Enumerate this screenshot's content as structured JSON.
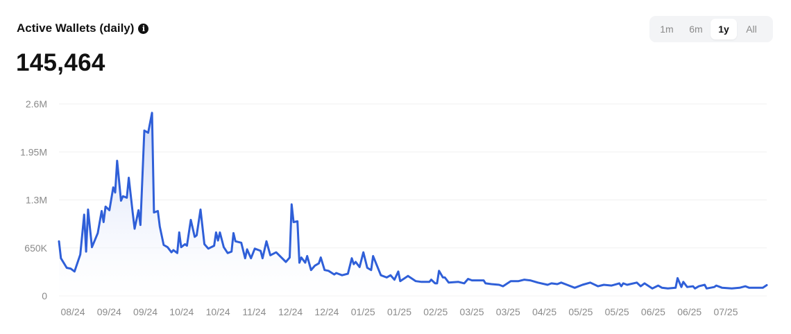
{
  "header": {
    "title": "Active Wallets (daily)",
    "info_icon": "info-icon",
    "current_value": "145,464"
  },
  "range_selector": {
    "options": [
      "1m",
      "6m",
      "1y",
      "All"
    ],
    "selected": "1y"
  },
  "colors": {
    "line": "#2f5fd8",
    "fill_top": "#c7d3f6",
    "grid": "#f0f0f0",
    "tick_text": "#8a8a8a"
  },
  "chart_data": {
    "type": "area",
    "title": "Active Wallets (daily)",
    "ylim": [
      0,
      2600000
    ],
    "yticks": [
      0,
      650000,
      1300000,
      1950000,
      2600000
    ],
    "ytick_labels": [
      "0",
      "650K",
      "1.3M",
      "1.95M",
      "2.6M"
    ],
    "xtick_labels": [
      "08/24",
      "09/24",
      "09/24",
      "10/24",
      "10/24",
      "11/24",
      "12/24",
      "12/24",
      "01/25",
      "01/25",
      "02/25",
      "03/25",
      "03/25",
      "04/25",
      "05/25",
      "05/25",
      "06/25",
      "06/25",
      "07/25"
    ],
    "grid": true,
    "points": [
      [
        "2024-07-29",
        740000
      ],
      [
        "2024-07-30",
        510000
      ],
      [
        "2024-08-02",
        380000
      ],
      [
        "2024-08-04",
        370000
      ],
      [
        "2024-08-06",
        330000
      ],
      [
        "2024-08-09",
        560000
      ],
      [
        "2024-08-11",
        1100000
      ],
      [
        "2024-08-12",
        600000
      ],
      [
        "2024-08-13",
        1170000
      ],
      [
        "2024-08-15",
        660000
      ],
      [
        "2024-08-18",
        850000
      ],
      [
        "2024-08-20",
        1150000
      ],
      [
        "2024-08-21",
        1000000
      ],
      [
        "2024-08-22",
        1210000
      ],
      [
        "2024-08-24",
        1160000
      ],
      [
        "2024-08-26",
        1470000
      ],
      [
        "2024-08-27",
        1400000
      ],
      [
        "2024-08-28",
        1830000
      ],
      [
        "2024-08-30",
        1290000
      ],
      [
        "2024-08-31",
        1350000
      ],
      [
        "2024-09-02",
        1330000
      ],
      [
        "2024-09-03",
        1600000
      ],
      [
        "2024-09-05",
        1130000
      ],
      [
        "2024-09-06",
        910000
      ],
      [
        "2024-09-08",
        1160000
      ],
      [
        "2024-09-09",
        960000
      ],
      [
        "2024-09-11",
        2240000
      ],
      [
        "2024-09-13",
        2210000
      ],
      [
        "2024-09-15",
        2480000
      ],
      [
        "2024-09-16",
        1130000
      ],
      [
        "2024-09-18",
        1150000
      ],
      [
        "2024-09-19",
        940000
      ],
      [
        "2024-09-21",
        690000
      ],
      [
        "2024-09-23",
        660000
      ],
      [
        "2024-09-25",
        590000
      ],
      [
        "2024-09-26",
        620000
      ],
      [
        "2024-09-28",
        580000
      ],
      [
        "2024-09-29",
        860000
      ],
      [
        "2024-09-30",
        660000
      ],
      [
        "2024-10-02",
        700000
      ],
      [
        "2024-10-03",
        680000
      ],
      [
        "2024-10-05",
        1030000
      ],
      [
        "2024-10-07",
        800000
      ],
      [
        "2024-10-08",
        820000
      ],
      [
        "2024-10-10",
        1170000
      ],
      [
        "2024-10-12",
        700000
      ],
      [
        "2024-10-14",
        640000
      ],
      [
        "2024-10-17",
        680000
      ],
      [
        "2024-10-18",
        860000
      ],
      [
        "2024-10-19",
        750000
      ],
      [
        "2024-10-20",
        860000
      ],
      [
        "2024-10-22",
        660000
      ],
      [
        "2024-10-24",
        580000
      ],
      [
        "2024-10-26",
        600000
      ],
      [
        "2024-10-27",
        850000
      ],
      [
        "2024-10-28",
        740000
      ],
      [
        "2024-10-31",
        720000
      ],
      [
        "2024-11-02",
        510000
      ],
      [
        "2024-11-03",
        630000
      ],
      [
        "2024-11-05",
        510000
      ],
      [
        "2024-11-07",
        640000
      ],
      [
        "2024-11-10",
        610000
      ],
      [
        "2024-11-11",
        510000
      ],
      [
        "2024-11-13",
        740000
      ],
      [
        "2024-11-15",
        550000
      ],
      [
        "2024-11-18",
        590000
      ],
      [
        "2024-11-23",
        460000
      ],
      [
        "2024-11-25",
        520000
      ],
      [
        "2024-11-26",
        1240000
      ],
      [
        "2024-11-27",
        1000000
      ],
      [
        "2024-11-29",
        1010000
      ],
      [
        "2024-11-30",
        450000
      ],
      [
        "2024-12-01",
        520000
      ],
      [
        "2024-12-03",
        450000
      ],
      [
        "2024-12-04",
        540000
      ],
      [
        "2024-12-06",
        350000
      ],
      [
        "2024-12-08",
        410000
      ],
      [
        "2024-12-10",
        440000
      ],
      [
        "2024-12-11",
        520000
      ],
      [
        "2024-12-13",
        350000
      ],
      [
        "2024-12-15",
        340000
      ],
      [
        "2024-12-18",
        290000
      ],
      [
        "2024-12-19",
        310000
      ],
      [
        "2024-12-22",
        280000
      ],
      [
        "2024-12-25",
        300000
      ],
      [
        "2024-12-27",
        510000
      ],
      [
        "2024-12-28",
        430000
      ],
      [
        "2024-12-29",
        460000
      ],
      [
        "2024-12-31",
        390000
      ],
      [
        "2025-01-02",
        590000
      ],
      [
        "2025-01-04",
        380000
      ],
      [
        "2025-01-06",
        350000
      ],
      [
        "2025-01-07",
        540000
      ],
      [
        "2025-01-11",
        280000
      ],
      [
        "2025-01-14",
        250000
      ],
      [
        "2025-01-16",
        280000
      ],
      [
        "2025-01-18",
        220000
      ],
      [
        "2025-01-20",
        330000
      ],
      [
        "2025-01-21",
        200000
      ],
      [
        "2025-01-25",
        270000
      ],
      [
        "2025-01-29",
        200000
      ],
      [
        "2025-02-01",
        190000
      ],
      [
        "2025-02-05",
        190000
      ],
      [
        "2025-02-06",
        220000
      ],
      [
        "2025-02-08",
        170000
      ],
      [
        "2025-02-09",
        170000
      ],
      [
        "2025-02-10",
        340000
      ],
      [
        "2025-02-12",
        250000
      ],
      [
        "2025-02-13",
        250000
      ],
      [
        "2025-02-15",
        180000
      ],
      [
        "2025-02-20",
        190000
      ],
      [
        "2025-02-23",
        170000
      ],
      [
        "2025-02-25",
        230000
      ],
      [
        "2025-02-27",
        210000
      ],
      [
        "2025-03-05",
        210000
      ],
      [
        "2025-03-06",
        170000
      ],
      [
        "2025-03-09",
        160000
      ],
      [
        "2025-03-13",
        150000
      ],
      [
        "2025-03-15",
        130000
      ],
      [
        "2025-03-19",
        200000
      ],
      [
        "2025-03-23",
        200000
      ],
      [
        "2025-03-26",
        220000
      ],
      [
        "2025-03-29",
        210000
      ],
      [
        "2025-04-02",
        180000
      ],
      [
        "2025-04-07",
        150000
      ],
      [
        "2025-04-09",
        170000
      ],
      [
        "2025-04-12",
        160000
      ],
      [
        "2025-04-14",
        180000
      ],
      [
        "2025-04-17",
        150000
      ],
      [
        "2025-04-21",
        110000
      ],
      [
        "2025-04-25",
        150000
      ],
      [
        "2025-04-29",
        180000
      ],
      [
        "2025-05-03",
        130000
      ],
      [
        "2025-05-06",
        150000
      ],
      [
        "2025-05-10",
        140000
      ],
      [
        "2025-05-14",
        170000
      ],
      [
        "2025-05-15",
        130000
      ],
      [
        "2025-05-16",
        170000
      ],
      [
        "2025-05-18",
        150000
      ],
      [
        "2025-05-23",
        180000
      ],
      [
        "2025-05-25",
        130000
      ],
      [
        "2025-05-27",
        170000
      ],
      [
        "2025-05-31",
        100000
      ],
      [
        "2025-06-03",
        140000
      ],
      [
        "2025-06-05",
        110000
      ],
      [
        "2025-06-08",
        100000
      ],
      [
        "2025-06-12",
        110000
      ],
      [
        "2025-06-13",
        240000
      ],
      [
        "2025-06-15",
        120000
      ],
      [
        "2025-06-16",
        190000
      ],
      [
        "2025-06-18",
        120000
      ],
      [
        "2025-06-21",
        130000
      ],
      [
        "2025-06-22",
        100000
      ],
      [
        "2025-06-24",
        130000
      ],
      [
        "2025-06-27",
        150000
      ],
      [
        "2025-06-28",
        100000
      ],
      [
        "2025-07-02",
        120000
      ],
      [
        "2025-07-03",
        140000
      ],
      [
        "2025-07-05",
        120000
      ],
      [
        "2025-07-06",
        110000
      ],
      [
        "2025-07-11",
        100000
      ],
      [
        "2025-07-15",
        110000
      ],
      [
        "2025-07-18",
        130000
      ],
      [
        "2025-07-20",
        110000
      ],
      [
        "2025-07-24",
        110000
      ],
      [
        "2025-07-27",
        110000
      ],
      [
        "2025-07-29",
        145464
      ]
    ]
  }
}
